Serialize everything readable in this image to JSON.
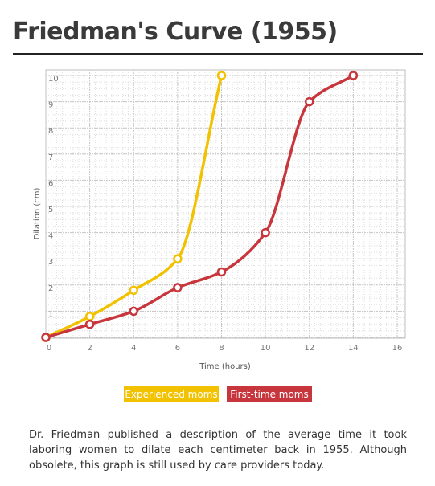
{
  "title": "Friedman's Curve (1955)",
  "description": "Dr. Friedman published a description of the average time it took laboring women to dilate each centimeter back in 1955. Although obsolete, this graph is still used by care providers today.",
  "chart_data": {
    "type": "line",
    "xlabel": "Time (hours)",
    "ylabel": "Dilation (cm)",
    "xlim": [
      0,
      16
    ],
    "ylim": [
      0,
      10
    ],
    "xticks": [
      "0",
      "2",
      "4",
      "6",
      "8",
      "10",
      "12",
      "14",
      "16"
    ],
    "yticks": [
      "1",
      "2",
      "3",
      "4",
      "5",
      "6",
      "7",
      "8",
      "9",
      "10"
    ],
    "grid": true,
    "legend_position": "bottom",
    "series": [
      {
        "name": "Experienced moms",
        "color": "#f2c200",
        "x": [
          0,
          2,
          4,
          6,
          8
        ],
        "y": [
          0,
          0.8,
          1.8,
          3,
          10
        ]
      },
      {
        "name": "First-time moms",
        "color": "#c8363d",
        "x": [
          0,
          2,
          4,
          6,
          8,
          10,
          12,
          14
        ],
        "y": [
          0,
          0.5,
          1,
          1.9,
          2.5,
          4,
          9,
          10
        ]
      }
    ]
  }
}
